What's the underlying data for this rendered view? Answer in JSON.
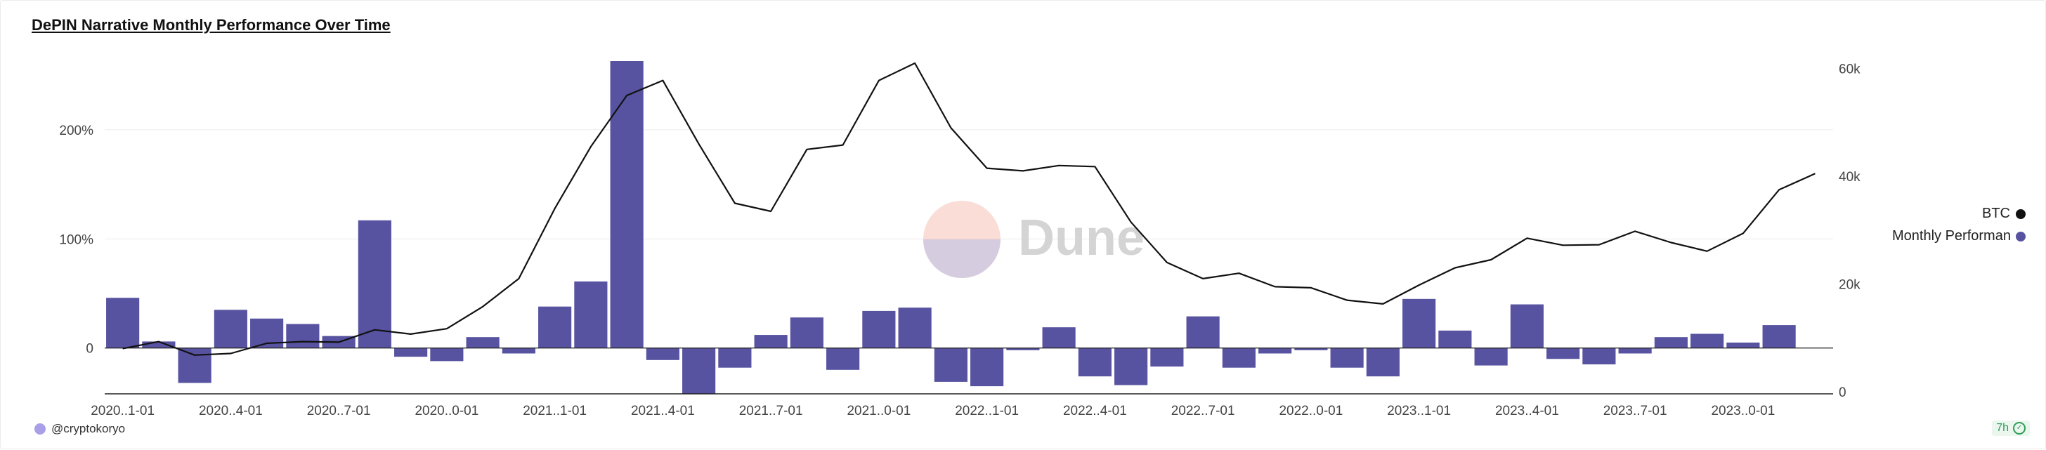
{
  "title": "DePIN Narrative Monthly Performance Over Time",
  "author": "@cryptokoryo",
  "badge": "7h",
  "watermark": "Dune",
  "colors": {
    "bar": "#5753a0",
    "line": "#111111",
    "grid": "#ececec",
    "axis": "#222222"
  },
  "legend": {
    "btc": "BTC",
    "perf": "Monthly Performance"
  },
  "chart_data": {
    "type": "bar+line",
    "x_tick_labels": [
      "2020..1-01",
      "2020..4-01",
      "2020..7-01",
      "2020..0-01",
      "2021..1-01",
      "2021..4-01",
      "2021..7-01",
      "2021..0-01",
      "2022..1-01",
      "2022..4-01",
      "2022..7-01",
      "2022..0-01",
      "2023..1-01",
      "2023..4-01",
      "2023..7-01",
      "2023..0-01"
    ],
    "y_left_ticks": [
      {
        "value": 0,
        "label": "0"
      },
      {
        "value": 100,
        "label": "100%"
      },
      {
        "value": 200,
        "label": "200%"
      }
    ],
    "y_right_ticks": [
      {
        "value": 0,
        "label": "0"
      },
      {
        "value": 20000,
        "label": "20k"
      },
      {
        "value": 40000,
        "label": "40k"
      },
      {
        "value": 60000,
        "label": "60k"
      }
    ],
    "y_left_range": [
      -42,
      263
    ],
    "y_right_range": [
      0,
      61000
    ],
    "series": [
      {
        "name": "Monthly Performance",
        "type": "bar",
        "axis": "left",
        "values": [
          46,
          6,
          -32,
          35,
          27,
          22,
          11,
          117,
          -8,
          -12,
          10,
          -5,
          38,
          61,
          263,
          -11,
          -42,
          -18,
          12,
          28,
          -20,
          34,
          37,
          -31,
          -35,
          -2,
          19,
          -26,
          -34,
          -17,
          29,
          -18,
          -5,
          -2,
          -18,
          -26,
          45,
          16,
          -16,
          40,
          -10,
          -15,
          -5,
          10,
          13,
          5,
          21
        ]
      },
      {
        "name": "BTC",
        "type": "line",
        "axis": "right",
        "values": [
          8000,
          9300,
          6800,
          7100,
          9000,
          9300,
          9200,
          11500,
          10700,
          11700,
          15800,
          21000,
          34000,
          45500,
          55000,
          57800,
          46000,
          35000,
          33500,
          45000,
          45800,
          57800,
          61000,
          49000,
          41500,
          41000,
          42000,
          41800,
          31500,
          24000,
          21000,
          22000,
          19500,
          19300,
          17000,
          16300,
          19800,
          23000,
          24500,
          28500,
          27200,
          27300,
          29800,
          27700,
          26100,
          29400,
          37500,
          40500
        ]
      }
    ]
  }
}
